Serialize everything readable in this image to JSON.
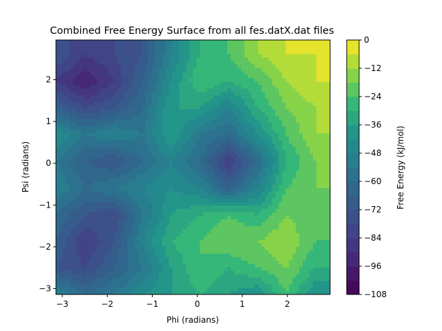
{
  "chart_data": {
    "type": "heatmap",
    "subtype": "filled-contour",
    "title": "Combined Free Energy Surface from all fes.datX.dat files",
    "xlabel": "Phi (radians)",
    "ylabel": "Psi (radians)",
    "xlim": [
      -3.14,
      2.95
    ],
    "ylim": [
      -3.14,
      2.95
    ],
    "x_ticks": [
      -3,
      -2,
      -1,
      0,
      1,
      2
    ],
    "y_ticks": [
      -3,
      -2,
      -1,
      0,
      1,
      2
    ],
    "x_tick_labels": [
      "−3",
      "−2",
      "−1",
      "0",
      "1",
      "2"
    ],
    "y_tick_labels": [
      "−3",
      "−2",
      "−1",
      "0",
      "1",
      "2"
    ],
    "colormap": "viridis",
    "colorbar": {
      "label": "Free Energy (kJ/mol)",
      "range": [
        -108,
        0
      ],
      "level_step": 6,
      "ticks": [
        0,
        -12,
        -24,
        -36,
        -48,
        -60,
        -72,
        -84,
        -96,
        -108
      ],
      "tick_labels": [
        "0",
        "−12",
        "−24",
        "−36",
        "−48",
        "−60",
        "−72",
        "−84",
        "−96",
        "−108"
      ]
    },
    "grid": {
      "x": [
        -3.14,
        -2.5,
        -1.86,
        -1.22,
        -0.58,
        0.06,
        0.7,
        1.34,
        1.98,
        2.62
      ],
      "y": [
        -3.14,
        -2.5,
        -1.86,
        -1.22,
        -0.58,
        0.06,
        0.7,
        1.34,
        1.98,
        2.62
      ],
      "z_rows_from_bottom": [
        [
          -48,
          -60,
          -54,
          -42,
          -36,
          -30,
          -36,
          -42,
          -24,
          -42
        ],
        [
          -72,
          -78,
          -66,
          -54,
          -36,
          -24,
          -30,
          -24,
          -18,
          -30
        ],
        [
          -66,
          -84,
          -72,
          -48,
          -30,
          -24,
          -18,
          -18,
          -12,
          -24
        ],
        [
          -60,
          -72,
          -78,
          -54,
          -36,
          -30,
          -24,
          -30,
          -18,
          -24
        ],
        [
          -48,
          -60,
          -54,
          -48,
          -42,
          -48,
          -66,
          -48,
          -24,
          -18
        ],
        [
          -54,
          -66,
          -72,
          -60,
          -48,
          -60,
          -84,
          -60,
          -30,
          -18
        ],
        [
          -42,
          -54,
          -48,
          -54,
          -36,
          -54,
          -60,
          -42,
          -24,
          -12
        ],
        [
          -66,
          -78,
          -72,
          -60,
          -36,
          -36,
          -48,
          -30,
          -18,
          -12
        ],
        [
          -84,
          -96,
          -84,
          -66,
          -42,
          -24,
          -30,
          -24,
          -12,
          -6
        ],
        [
          -72,
          -84,
          -78,
          -72,
          -48,
          -30,
          -24,
          -12,
          -6,
          -6
        ]
      ]
    }
  }
}
